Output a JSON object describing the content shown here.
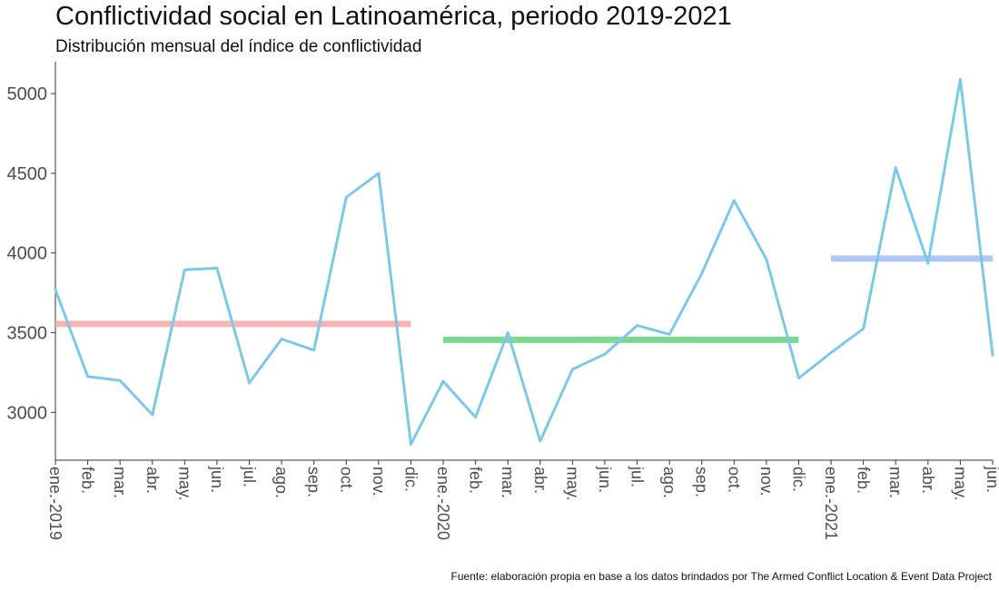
{
  "title": "Conflictividad social en Latinoamérica, periodo 2019-2021",
  "subtitle": "Distribución mensual del índice de conflictividad",
  "caption": "Fuente: elaboración propia en base a los datos brindados por The Armed Conflict Location & Event Data Project",
  "colors": {
    "line": "#7ec8e3",
    "mean_2019": "#f8b4b4",
    "mean_2020": "#7dd88f",
    "mean_2021": "#adc8f7",
    "axis": "#333333"
  },
  "chart_data": {
    "type": "line",
    "title": "Conflictividad social en Latinoamérica, periodo 2019-2021",
    "subtitle": "Distribución mensual del índice de conflictividad",
    "xlabel": "",
    "ylabel": "",
    "ylim": [
      2700,
      5200
    ],
    "yticks": [
      3000,
      3500,
      4000,
      4500,
      5000
    ],
    "grid": false,
    "x": [
      "ene.-2019",
      "feb.",
      "mar.",
      "abr.",
      "may.",
      "jun.",
      "jul.",
      "ago.",
      "sep.",
      "oct.",
      "nov.",
      "dic.",
      "ene.-2020",
      "feb.",
      "mar.",
      "abr.",
      "may.",
      "jun.",
      "jul.",
      "ago.",
      "sep.",
      "oct.",
      "nov.",
      "dic.",
      "ene.-2021",
      "feb.",
      "mar.",
      "abr.",
      "may.",
      "jun."
    ],
    "series": [
      {
        "values": [
          3770,
          3225,
          3200,
          2985,
          3895,
          3905,
          3185,
          3460,
          3390,
          4350,
          4500,
          2800,
          3195,
          2970,
          3500,
          2820,
          3270,
          3365,
          3545,
          3490,
          3870,
          4330,
          3960,
          3215,
          3375,
          3525,
          4535,
          3935,
          5090,
          3360
        ]
      }
    ],
    "annual_means": [
      {
        "year": "2019",
        "value": 3555,
        "from": "ene.-2019",
        "to": "dic."
      },
      {
        "year": "2020",
        "value": 3455,
        "from": "ene.-2020",
        "to": "dic."
      },
      {
        "year": "2021",
        "value": 3965,
        "from": "ene.-2021",
        "to": "jun."
      }
    ]
  }
}
